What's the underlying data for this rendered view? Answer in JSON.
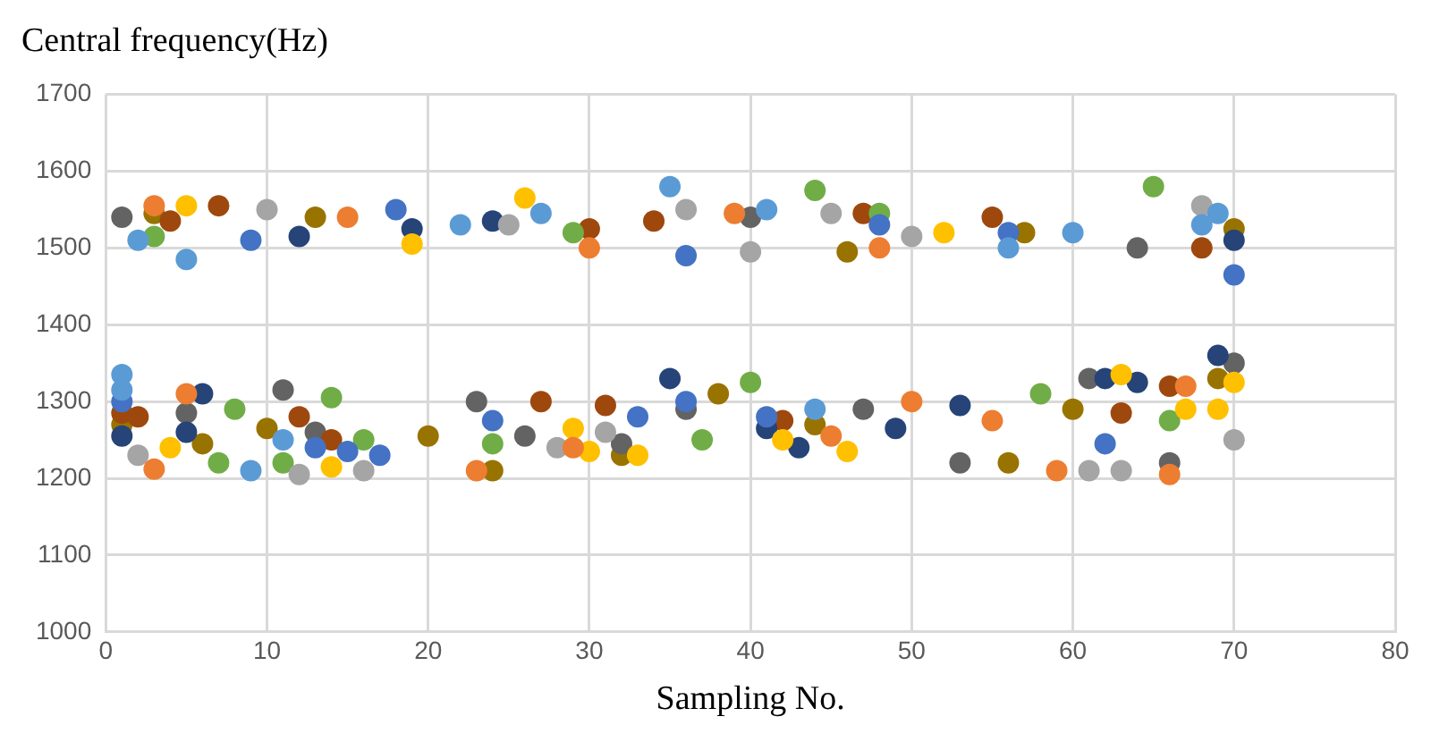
{
  "chart_data": {
    "type": "scatter",
    "ylabel": "Central frequency(Hz)",
    "xlabel": "Sampling No.",
    "xlim": [
      0,
      80
    ],
    "xticks": [
      0,
      10,
      20,
      30,
      40,
      50,
      60,
      70,
      80
    ],
    "ylim": [
      1000,
      1700
    ],
    "yticks": [
      1000,
      1100,
      1200,
      1300,
      1400,
      1500,
      1600,
      1700
    ],
    "grid": true,
    "legend": false,
    "marker": "circle",
    "series": [
      {
        "color": "#5b9bd5",
        "x": [
          1,
          1,
          2,
          5,
          9,
          11,
          35,
          41,
          44,
          56,
          60,
          68,
          69,
          22,
          27
        ],
        "values": [
          1335,
          1315,
          1510,
          1485,
          1210,
          1250,
          1580,
          1550,
          1290,
          1500,
          1520,
          1530,
          1545,
          1530,
          1545
        ]
      },
      {
        "color": "#ed7d31",
        "x": [
          3,
          3,
          5,
          23,
          29,
          30,
          39,
          45,
          50,
          55,
          59,
          66,
          67,
          15,
          48
        ],
        "values": [
          1212,
          1555,
          1310,
          1210,
          1240,
          1500,
          1545,
          1255,
          1300,
          1275,
          1210,
          1205,
          1320,
          1540,
          1500
        ]
      },
      {
        "color": "#a5a5a5",
        "x": [
          2,
          10,
          12,
          16,
          28,
          31,
          40,
          45,
          50,
          61,
          63,
          68,
          70,
          25,
          36
        ],
        "values": [
          1230,
          1550,
          1205,
          1210,
          1240,
          1260,
          1495,
          1545,
          1515,
          1210,
          1210,
          1555,
          1250,
          1530,
          1550
        ]
      },
      {
        "color": "#ffc000",
        "x": [
          4,
          5,
          14,
          19,
          29,
          30,
          33,
          42,
          46,
          52,
          63,
          67,
          69,
          70,
          26
        ],
        "values": [
          1240,
          1555,
          1215,
          1505,
          1265,
          1235,
          1230,
          1250,
          1235,
          1520,
          1335,
          1290,
          1290,
          1325,
          1565
        ]
      },
      {
        "color": "#4472c4",
        "x": [
          1,
          9,
          13,
          15,
          17,
          18,
          24,
          33,
          36,
          36,
          41,
          56,
          62,
          70,
          48
        ],
        "values": [
          1300,
          1510,
          1240,
          1235,
          1230,
          1550,
          1275,
          1280,
          1300,
          1490,
          1280,
          1520,
          1245,
          1465,
          1530
        ]
      },
      {
        "color": "#70ad47",
        "x": [
          3,
          7,
          8,
          11,
          14,
          16,
          24,
          37,
          40,
          44,
          48,
          58,
          65,
          66,
          29
        ],
        "values": [
          1515,
          1220,
          1290,
          1220,
          1305,
          1250,
          1245,
          1250,
          1325,
          1575,
          1545,
          1310,
          1580,
          1275,
          1520
        ]
      },
      {
        "color": "#264478",
        "x": [
          1,
          5,
          6,
          19,
          24,
          35,
          41,
          43,
          49,
          53,
          62,
          64,
          69,
          70,
          12
        ],
        "values": [
          1255,
          1260,
          1310,
          1525,
          1535,
          1330,
          1265,
          1240,
          1265,
          1295,
          1330,
          1325,
          1360,
          1510,
          1515
        ]
      },
      {
        "color": "#9e480e",
        "x": [
          1,
          2,
          4,
          7,
          12,
          14,
          27,
          30,
          31,
          34,
          42,
          47,
          55,
          63,
          66,
          68
        ],
        "values": [
          1285,
          1280,
          1535,
          1555,
          1280,
          1250,
          1300,
          1525,
          1295,
          1535,
          1275,
          1545,
          1540,
          1285,
          1320,
          1500
        ]
      },
      {
        "color": "#636363",
        "x": [
          1,
          5,
          11,
          13,
          23,
          26,
          32,
          36,
          40,
          47,
          53,
          61,
          64,
          66,
          70
        ],
        "values": [
          1540,
          1285,
          1315,
          1260,
          1300,
          1255,
          1245,
          1290,
          1540,
          1290,
          1220,
          1330,
          1500,
          1220,
          1350
        ]
      },
      {
        "color": "#997300",
        "x": [
          1,
          3,
          6,
          10,
          13,
          20,
          24,
          32,
          38,
          44,
          46,
          56,
          57,
          60,
          69,
          70
        ],
        "values": [
          1270,
          1545,
          1245,
          1265,
          1540,
          1255,
          1210,
          1230,
          1310,
          1270,
          1495,
          1220,
          1520,
          1290,
          1330,
          1525
        ]
      }
    ]
  }
}
